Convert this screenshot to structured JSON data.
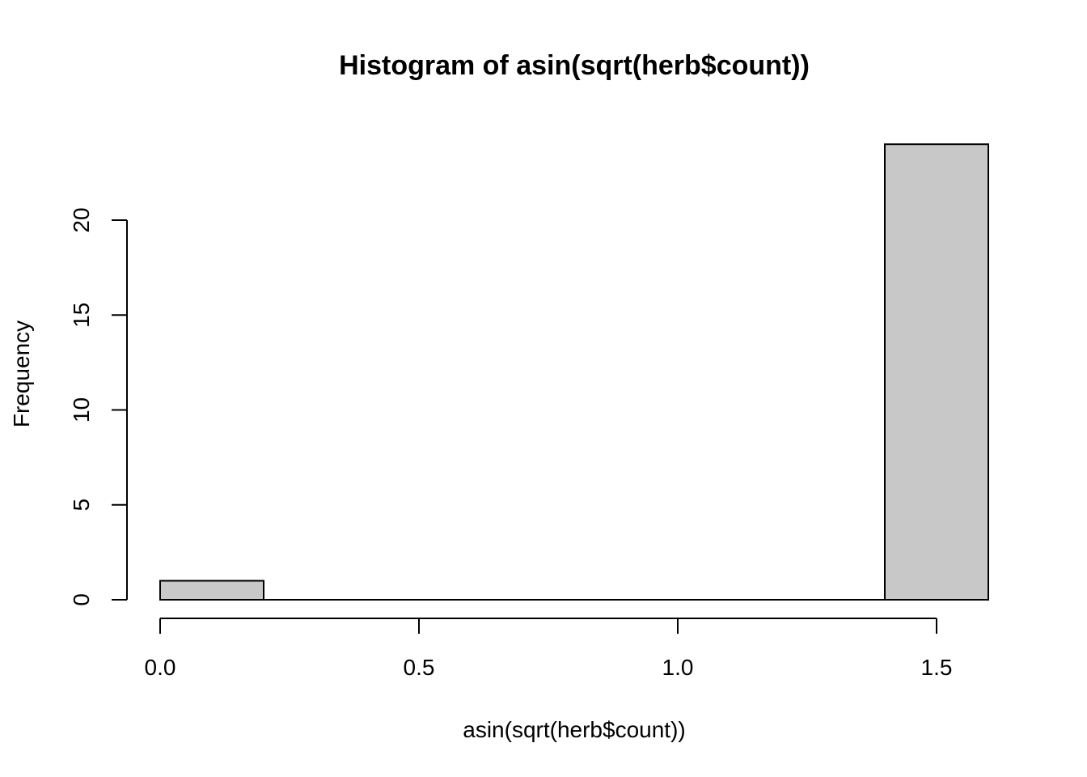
{
  "chart_data": {
    "type": "bar",
    "title": "Histogram of asin(sqrt(herb$count))",
    "xlabel": "asin(sqrt(herb$count))",
    "ylabel": "Frequency",
    "bins": [
      {
        "start": 0.0,
        "end": 0.2,
        "count": 1
      },
      {
        "start": 0.2,
        "end": 0.4,
        "count": 0
      },
      {
        "start": 0.4,
        "end": 0.6,
        "count": 0
      },
      {
        "start": 0.6,
        "end": 0.8,
        "count": 0
      },
      {
        "start": 0.8,
        "end": 1.0,
        "count": 0
      },
      {
        "start": 1.0,
        "end": 1.2,
        "count": 0
      },
      {
        "start": 1.2,
        "end": 1.4,
        "count": 0
      },
      {
        "start": 1.4,
        "end": 1.6,
        "count": 24
      }
    ],
    "xlim": [
      0.0,
      1.6
    ],
    "ylim": [
      0,
      24
    ],
    "x_ticks": [
      "0.0",
      "0.5",
      "1.0",
      "1.5"
    ],
    "y_ticks": [
      "0",
      "5",
      "10",
      "15",
      "20"
    ],
    "bar_color": "#c8c8c8",
    "grid": false
  }
}
